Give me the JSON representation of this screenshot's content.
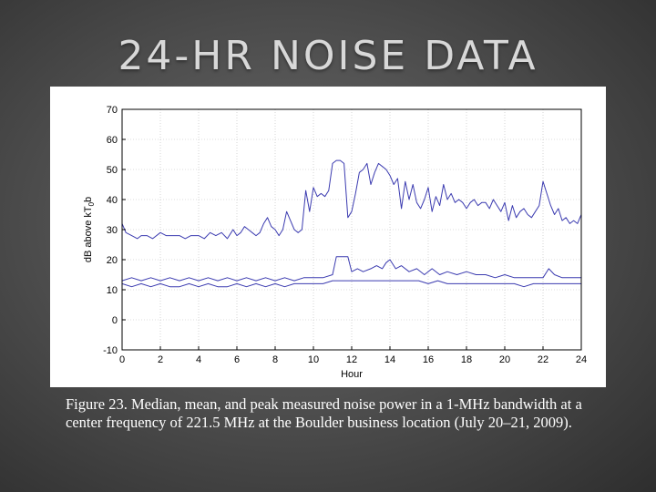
{
  "slide": {
    "title": "24-HR NOISE DATA",
    "caption": "Figure 23. Median, mean, and peak measured noise power in a 1-MHz bandwidth at a center frequency of 221.5 MHz at the Boulder business location (July 20–21, 2009)."
  },
  "colors": {
    "line": "#3b3bb0",
    "frame": "#000000",
    "grid": "#bbbbbb"
  },
  "chart_data": {
    "type": "line",
    "title": "",
    "xlabel": "Hour",
    "ylabel": "dB above kT",
    "ylabel_sub": "0",
    "ylabel_tail": "b",
    "xlim": [
      0,
      24
    ],
    "ylim": [
      -10,
      70
    ],
    "xticks": [
      0,
      2,
      4,
      6,
      8,
      10,
      12,
      14,
      16,
      18,
      20,
      22,
      24
    ],
    "yticks": [
      -10,
      0,
      10,
      20,
      30,
      40,
      50,
      60,
      70
    ],
    "grid": true,
    "series": [
      {
        "x": [
          0,
          0.2,
          0.5,
          0.8,
          1.0,
          1.3,
          1.6,
          2.0,
          2.3,
          2.6,
          3.0,
          3.3,
          3.6,
          4.0,
          4.3,
          4.6,
          4.9,
          5.2,
          5.5,
          5.8,
          6.0,
          6.2,
          6.4,
          6.6,
          6.8,
          7.0,
          7.2,
          7.4,
          7.6,
          7.8,
          8.0,
          8.2,
          8.4,
          8.6,
          8.8,
          9.0,
          9.2,
          9.4,
          9.6,
          9.8,
          10.0,
          10.2,
          10.4,
          10.6,
          10.8,
          11.0,
          11.2,
          11.4,
          11.6,
          11.8,
          12.0,
          12.2,
          12.4,
          12.6,
          12.8,
          13.0,
          13.2,
          13.4,
          13.6,
          13.8,
          14.0,
          14.2,
          14.4,
          14.6,
          14.8,
          15.0,
          15.2,
          15.4,
          15.6,
          15.8,
          16.0,
          16.2,
          16.4,
          16.6,
          16.8,
          17.0,
          17.2,
          17.4,
          17.6,
          17.8,
          18.0,
          18.2,
          18.4,
          18.6,
          18.8,
          19.0,
          19.2,
          19.4,
          19.6,
          19.8,
          20.0,
          20.2,
          20.4,
          20.6,
          20.8,
          21.0,
          21.2,
          21.4,
          21.6,
          21.8,
          22.0,
          22.2,
          22.4,
          22.6,
          22.8,
          23.0,
          23.2,
          23.4,
          23.6,
          23.8,
          24.0
        ],
        "values": [
          32,
          29,
          28,
          27,
          28,
          28,
          27,
          29,
          28,
          28,
          28,
          27,
          28,
          28,
          27,
          29,
          28,
          29,
          27,
          30,
          28,
          29,
          31,
          30,
          29,
          28,
          29,
          32,
          34,
          31,
          30,
          28,
          30,
          36,
          33,
          30,
          29,
          30,
          43,
          36,
          44,
          41,
          42,
          41,
          43,
          52,
          53,
          53,
          52,
          34,
          36,
          42,
          49,
          50,
          52,
          45,
          49,
          52,
          51,
          50,
          48,
          45,
          47,
          37,
          46,
          40,
          45,
          39,
          37,
          40,
          44,
          36,
          41,
          38,
          45,
          40,
          42,
          39,
          40,
          39,
          37,
          39,
          40,
          38,
          39,
          39,
          37,
          40,
          38,
          36,
          39,
          33,
          38,
          34,
          36,
          37,
          35,
          34,
          36,
          38,
          46,
          42,
          38,
          35,
          37,
          33,
          34,
          32,
          33,
          32,
          35
        ]
      },
      {
        "x": [
          0,
          0.5,
          1.0,
          1.5,
          2.0,
          2.5,
          3.0,
          3.5,
          4.0,
          4.5,
          5.0,
          5.5,
          6.0,
          6.5,
          7.0,
          7.5,
          8.0,
          8.5,
          9.0,
          9.5,
          10.0,
          10.5,
          11.0,
          11.2,
          11.5,
          11.8,
          12.0,
          12.3,
          12.6,
          13.0,
          13.3,
          13.6,
          13.8,
          14.0,
          14.3,
          14.6,
          15.0,
          15.4,
          15.8,
          16.2,
          16.6,
          17.0,
          17.5,
          18.0,
          18.5,
          19.0,
          19.5,
          20.0,
          20.5,
          21.0,
          21.5,
          22.0,
          22.3,
          22.6,
          23.0,
          23.5,
          24.0
        ],
        "values": [
          13,
          14,
          13,
          14,
          13,
          14,
          13,
          14,
          13,
          14,
          13,
          14,
          13,
          14,
          13,
          14,
          13,
          14,
          13,
          14,
          14,
          14,
          15,
          21,
          21,
          21,
          16,
          17,
          16,
          17,
          18,
          17,
          19,
          20,
          17,
          18,
          16,
          17,
          15,
          17,
          15,
          16,
          15,
          16,
          15,
          15,
          14,
          15,
          14,
          14,
          14,
          14,
          17,
          15,
          14,
          14,
          14
        ]
      },
      {
        "x": [
          0,
          0.5,
          1.0,
          1.5,
          2.0,
          2.5,
          3.0,
          3.5,
          4.0,
          4.5,
          5.0,
          5.5,
          6.0,
          6.5,
          7.0,
          7.5,
          8.0,
          8.5,
          9.0,
          9.5,
          10.0,
          10.5,
          11.0,
          11.5,
          12.0,
          12.5,
          13.0,
          13.5,
          14.0,
          14.5,
          15.0,
          15.5,
          16.0,
          16.5,
          17.0,
          17.5,
          18.0,
          18.5,
          19.0,
          19.5,
          20.0,
          20.5,
          21.0,
          21.5,
          22.0,
          22.5,
          23.0,
          23.5,
          24.0
        ],
        "values": [
          12,
          11,
          12,
          11,
          12,
          11,
          11,
          12,
          11,
          12,
          11,
          11,
          12,
          11,
          12,
          11,
          12,
          11,
          12,
          12,
          12,
          12,
          13,
          13,
          13,
          13,
          13,
          13,
          13,
          13,
          13,
          13,
          12,
          13,
          12,
          12,
          12,
          12,
          12,
          12,
          12,
          12,
          11,
          12,
          12,
          12,
          12,
          12,
          12
        ]
      }
    ]
  }
}
